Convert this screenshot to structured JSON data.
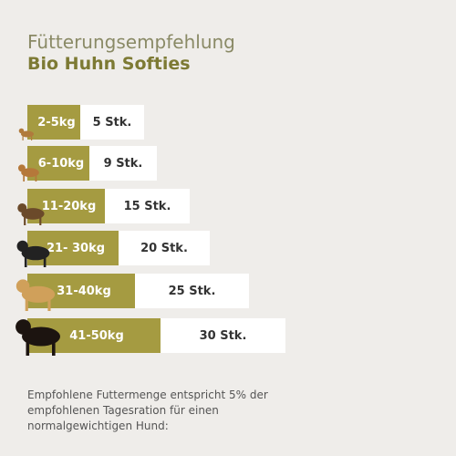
{
  "header": {
    "title": "Fütterungsempfehlung",
    "subtitle": "Bio Huhn Softies"
  },
  "rows": [
    {
      "weight": "2-5kg",
      "amount": "5 Stk."
    },
    {
      "weight": "6-10kg",
      "amount": "9 Stk."
    },
    {
      "weight": "11-20kg",
      "amount": "15 Stk."
    },
    {
      "weight": "21- 30kg",
      "amount": "20 Stk."
    },
    {
      "weight": "31-40kg",
      "amount": "25 Stk."
    },
    {
      "weight": "41-50kg",
      "amount": "30 Stk."
    }
  ],
  "footer": {
    "lines": [
      "Empfohlene Futtermenge entspricht 5% der",
      "empfohlenen Tagesration für einen",
      "normalgewichtigen Hund:"
    ]
  }
}
